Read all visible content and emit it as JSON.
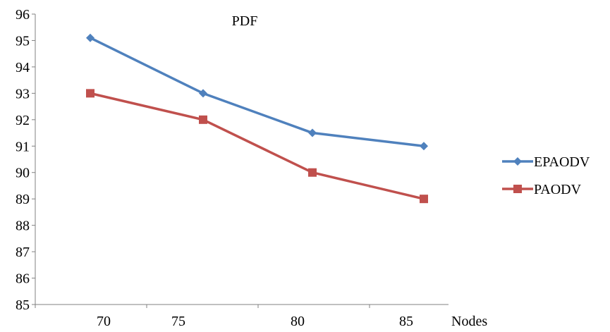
{
  "chart_data": {
    "type": "line",
    "title": "PDF",
    "xlabel": "Nodes",
    "ylabel": "",
    "x": [
      70,
      75,
      80,
      85
    ],
    "x_tick_labels": [
      "70",
      "75",
      "80",
      "85"
    ],
    "ylim": [
      85,
      96
    ],
    "y_ticks": [
      85,
      86,
      87,
      88,
      89,
      90,
      91,
      92,
      93,
      94,
      95,
      96
    ],
    "grid": false,
    "legend": "right",
    "series": [
      {
        "name": "EPAODV",
        "values": [
          95.1,
          93.0,
          91.5,
          91.0
        ],
        "color": "#4f81bd",
        "marker": "diamond"
      },
      {
        "name": "PAODV",
        "values": [
          93.0,
          92.0,
          90.0,
          89.0
        ],
        "color": "#c0504d",
        "marker": "square"
      }
    ]
  }
}
